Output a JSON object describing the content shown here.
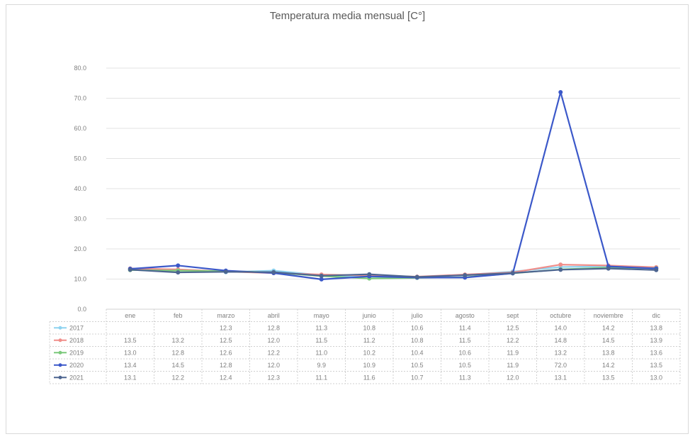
{
  "chart_data": {
    "type": "line",
    "title": "Temperatura media mensual [C°]",
    "categories": [
      "ene",
      "feb",
      "marzo",
      "abril",
      "mayo",
      "junio",
      "julio",
      "agosto",
      "sept",
      "octubre",
      "noviembre",
      "dic"
    ],
    "ylim": [
      0,
      80
    ],
    "yticks": [
      "0.0",
      "10.0",
      "20.0",
      "30.0",
      "40.0",
      "50.0",
      "60.0",
      "70.0",
      "80.0"
    ],
    "grid": true,
    "legend": "table-bottom",
    "series": [
      {
        "name": "2017",
        "color": "#8fd3f0",
        "values": [
          null,
          null,
          12.3,
          12.8,
          11.3,
          10.8,
          10.6,
          11.4,
          12.5,
          14.0,
          14.2,
          13.8
        ]
      },
      {
        "name": "2018",
        "color": "#f08e8a",
        "values": [
          13.5,
          13.2,
          12.5,
          12.0,
          11.5,
          11.2,
          10.8,
          11.5,
          12.2,
          14.8,
          14.5,
          13.9
        ]
      },
      {
        "name": "2019",
        "color": "#7bc97b",
        "values": [
          13.0,
          12.8,
          12.6,
          12.2,
          11.0,
          10.2,
          10.4,
          10.6,
          11.9,
          13.2,
          13.8,
          13.6
        ]
      },
      {
        "name": "2020",
        "color": "#3b58c9",
        "values": [
          13.4,
          14.5,
          12.8,
          12.0,
          9.9,
          10.9,
          10.5,
          10.5,
          11.9,
          72.0,
          14.2,
          13.5
        ]
      },
      {
        "name": "2021",
        "color": "#4d6590",
        "values": [
          13.1,
          12.2,
          12.4,
          12.3,
          11.1,
          11.6,
          10.7,
          11.3,
          12.0,
          13.1,
          13.5,
          13.0
        ]
      }
    ],
    "table": [
      [
        "",
        "",
        "12.3",
        "12.8",
        "11.3",
        "10.8",
        "10.6",
        "11.4",
        "12.5",
        "14.0",
        "14.2",
        "13.8"
      ],
      [
        "13.5",
        "13.2",
        "12.5",
        "12.0",
        "11.5",
        "11.2",
        "10.8",
        "11.5",
        "12.2",
        "14.8",
        "14.5",
        "13.9"
      ],
      [
        "13.0",
        "12.8",
        "12.6",
        "12.2",
        "11.0",
        "10.2",
        "10.4",
        "10.6",
        "11.9",
        "13.2",
        "13.8",
        "13.6"
      ],
      [
        "13.4",
        "14.5",
        "12.8",
        "12.0",
        "9.9",
        "10.9",
        "10.5",
        "10.5",
        "11.9",
        "72.0",
        "14.2",
        "13.5"
      ],
      [
        "13.1",
        "12.2",
        "12.4",
        "12.3",
        "11.1",
        "11.6",
        "10.7",
        "11.3",
        "12.0",
        "13.1",
        "13.5",
        "13.0"
      ]
    ]
  }
}
